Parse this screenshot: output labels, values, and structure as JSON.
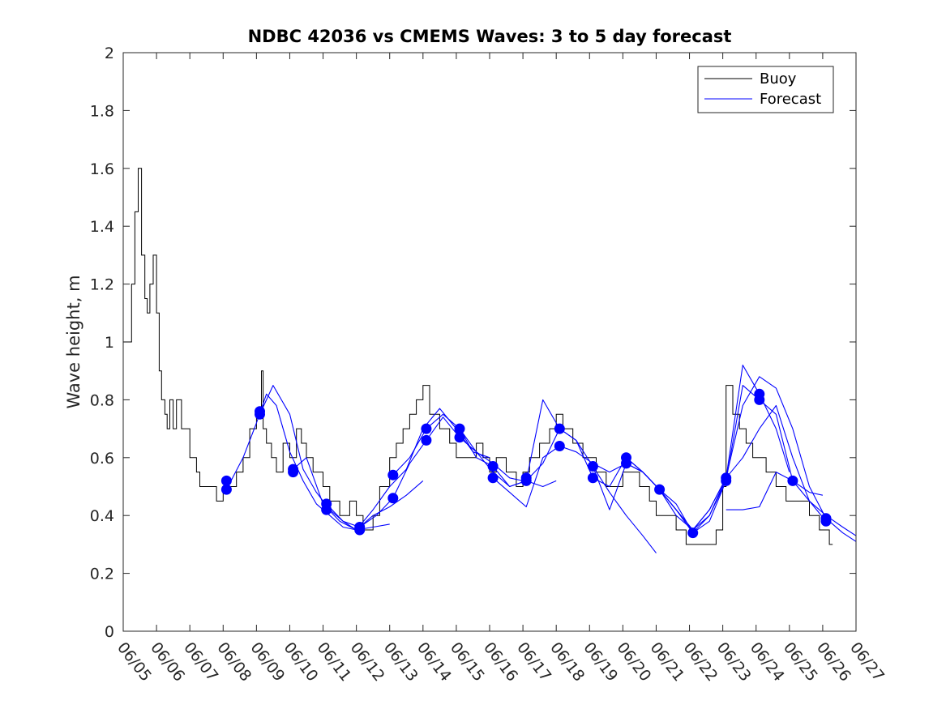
{
  "chart_data": {
    "type": "line",
    "title": "NDBC 42036 vs CMEMS Waves: 3 to 5 day forecast",
    "ylabel": "Wave height, m",
    "xlabel": "",
    "ylim": [
      0,
      2
    ],
    "yticks": [
      "0",
      "0.2",
      "0.4",
      "0.6",
      "0.8",
      "1",
      "1.2",
      "1.4",
      "1.6",
      "1.8",
      "2"
    ],
    "xlim_days": [
      5,
      27
    ],
    "xtick_labels": [
      "06/05",
      "06/06",
      "06/07",
      "06/08",
      "06/09",
      "06/10",
      "06/11",
      "06/12",
      "06/13",
      "06/14",
      "06/15",
      "06/16",
      "06/17",
      "06/18",
      "06/19",
      "06/20",
      "06/21",
      "06/22",
      "06/23",
      "06/24",
      "06/25",
      "06/26",
      "06/27"
    ],
    "grid": false,
    "legend": {
      "placement": "top-right",
      "entries": [
        {
          "label": "Buoy",
          "color": "#000000"
        },
        {
          "label": "Forecast",
          "color": "#0000ff"
        }
      ]
    },
    "colors": {
      "buoy": "#000000",
      "forecast": "#0000ff"
    },
    "buoy": {
      "x": [
        5.0,
        5.25,
        5.35,
        5.45,
        5.55,
        5.65,
        5.72,
        5.8,
        5.9,
        6.0,
        6.08,
        6.15,
        6.25,
        6.32,
        6.4,
        6.5,
        6.6,
        6.75,
        7.0,
        7.2,
        7.3,
        7.5,
        7.8,
        8.0,
        8.2,
        8.4,
        8.6,
        8.8,
        9.0,
        9.15,
        9.2,
        9.3,
        9.45,
        9.6,
        9.8,
        10.0,
        10.2,
        10.35,
        10.5,
        10.7,
        11.0,
        11.2,
        11.5,
        11.8,
        12.0,
        12.2,
        12.5,
        12.7,
        13.0,
        13.2,
        13.4,
        13.6,
        13.8,
        14.0,
        14.2,
        14.5,
        14.8,
        15.0,
        15.3,
        15.6,
        15.8,
        16.0,
        16.2,
        16.5,
        16.8,
        17.0,
        17.2,
        17.5,
        17.8,
        18.0,
        18.2,
        18.5,
        18.8,
        19.0,
        19.2,
        19.5,
        19.8,
        20.0,
        20.2,
        20.5,
        20.8,
        21.0,
        21.3,
        21.6,
        21.9,
        22.2,
        22.5,
        22.8,
        23.0,
        23.1,
        23.3,
        23.5,
        23.7,
        23.9,
        24.1,
        24.3,
        24.6,
        24.9,
        25.1,
        25.3,
        25.6,
        25.9,
        26.0,
        26.2,
        26.3
      ],
      "y": [
        1.0,
        1.2,
        1.45,
        1.6,
        1.3,
        1.15,
        1.1,
        1.2,
        1.3,
        1.1,
        0.9,
        0.8,
        0.75,
        0.7,
        0.8,
        0.7,
        0.8,
        0.7,
        0.6,
        0.55,
        0.5,
        0.5,
        0.45,
        0.5,
        0.5,
        0.55,
        0.6,
        0.7,
        0.75,
        0.9,
        0.7,
        0.65,
        0.6,
        0.55,
        0.65,
        0.6,
        0.7,
        0.65,
        0.6,
        0.55,
        0.5,
        0.45,
        0.4,
        0.45,
        0.4,
        0.35,
        0.4,
        0.5,
        0.6,
        0.65,
        0.7,
        0.75,
        0.8,
        0.85,
        0.75,
        0.7,
        0.65,
        0.6,
        0.6,
        0.65,
        0.6,
        0.55,
        0.6,
        0.55,
        0.5,
        0.55,
        0.6,
        0.65,
        0.7,
        0.75,
        0.7,
        0.65,
        0.6,
        0.6,
        0.55,
        0.5,
        0.5,
        0.55,
        0.55,
        0.5,
        0.45,
        0.4,
        0.4,
        0.35,
        0.3,
        0.3,
        0.3,
        0.35,
        0.5,
        0.85,
        0.75,
        0.7,
        0.65,
        0.6,
        0.6,
        0.55,
        0.5,
        0.45,
        0.45,
        0.45,
        0.4,
        0.35,
        0.35,
        0.3,
        0.3
      ]
    },
    "forecast_series": [
      {
        "x": [
          8.1,
          8.6,
          9.0,
          9.3,
          9.6,
          10.0,
          10.4,
          10.8,
          11.2,
          11.6,
          12.0,
          12.5,
          13.0
        ],
        "y": [
          0.49,
          0.6,
          0.72,
          0.82,
          0.78,
          0.62,
          0.52,
          0.44,
          0.4,
          0.36,
          0.35,
          0.36,
          0.37
        ]
      },
      {
        "x": [
          9.1,
          9.5,
          10.0,
          10.4,
          10.8,
          11.2,
          11.6,
          12.0,
          12.5,
          13.0,
          13.5,
          14.0
        ],
        "y": [
          0.75,
          0.85,
          0.75,
          0.56,
          0.48,
          0.42,
          0.38,
          0.35,
          0.4,
          0.43,
          0.47,
          0.52
        ]
      },
      {
        "x": [
          10.1,
          10.5,
          11.0,
          11.5,
          12.0,
          12.5,
          13.0,
          13.5,
          14.0,
          14.5,
          15.0,
          15.5,
          16.0
        ],
        "y": [
          0.56,
          0.6,
          0.44,
          0.38,
          0.35,
          0.42,
          0.5,
          0.56,
          0.7,
          0.77,
          0.7,
          0.62,
          0.6
        ]
      },
      {
        "x": [
          11.1,
          11.6,
          12.1,
          12.6,
          13.1,
          13.6,
          14.1,
          14.6,
          15.1,
          15.6,
          16.1,
          16.6,
          17.0
        ],
        "y": [
          0.44,
          0.38,
          0.36,
          0.4,
          0.46,
          0.58,
          0.66,
          0.74,
          0.67,
          0.62,
          0.58,
          0.53,
          0.52
        ]
      },
      {
        "x": [
          13.1,
          13.6,
          14.1,
          14.6,
          15.1,
          15.6,
          16.1,
          16.6,
          17.1,
          17.6,
          18.0
        ],
        "y": [
          0.54,
          0.6,
          0.7,
          0.75,
          0.7,
          0.62,
          0.55,
          0.5,
          0.52,
          0.5,
          0.52
        ]
      },
      {
        "x": [
          15.1,
          15.6,
          16.1,
          16.6,
          17.1,
          17.6,
          18.1,
          18.6,
          19.1,
          19.6,
          20.1,
          20.6,
          21.0
        ],
        "y": [
          0.7,
          0.6,
          0.57,
          0.5,
          0.52,
          0.58,
          0.7,
          0.66,
          0.57,
          0.48,
          0.4,
          0.33,
          0.27
        ]
      },
      {
        "x": [
          16.1,
          16.6,
          17.1,
          17.6,
          18.1,
          18.6,
          19.1,
          19.6,
          20.1,
          20.6,
          21.1,
          21.6,
          22.1
        ],
        "y": [
          0.53,
          0.48,
          0.43,
          0.6,
          0.64,
          0.62,
          0.58,
          0.55,
          0.58,
          0.55,
          0.49,
          0.42,
          0.35
        ]
      },
      {
        "x": [
          17.1,
          17.6,
          18.1,
          18.6,
          19.1,
          19.6,
          20.1,
          20.6,
          21.1,
          21.6,
          22.1,
          22.6,
          23.1
        ],
        "y": [
          0.52,
          0.8,
          0.7,
          0.66,
          0.53,
          0.5,
          0.6,
          0.55,
          0.49,
          0.44,
          0.34,
          0.38,
          0.52
        ]
      },
      {
        "x": [
          19.1,
          19.6,
          20.1,
          20.6,
          21.1,
          21.6,
          22.1,
          22.6,
          23.1,
          23.6,
          24.1,
          24.6,
          25.0
        ],
        "y": [
          0.57,
          0.42,
          0.58,
          0.55,
          0.49,
          0.4,
          0.35,
          0.42,
          0.53,
          0.92,
          0.82,
          0.7,
          0.55
        ]
      },
      {
        "x": [
          20.1,
          20.6,
          21.1,
          21.6,
          22.1,
          22.6,
          23.1,
          23.6,
          24.1,
          24.6,
          25.1,
          25.6,
          26.1
        ],
        "y": [
          0.6,
          0.55,
          0.49,
          0.42,
          0.34,
          0.4,
          0.52,
          0.85,
          0.8,
          0.75,
          0.52,
          0.45,
          0.38
        ]
      },
      {
        "x": [
          21.1,
          21.6,
          22.1,
          22.6,
          23.1,
          23.6,
          24.1,
          24.6,
          25.1,
          25.6,
          26.1,
          26.6,
          27.0
        ],
        "y": [
          0.49,
          0.42,
          0.35,
          0.42,
          0.53,
          0.78,
          0.88,
          0.84,
          0.7,
          0.5,
          0.39,
          0.34,
          0.31
        ]
      },
      {
        "x": [
          22.1,
          22.6,
          23.1,
          23.6,
          24.1,
          24.6,
          25.1,
          25.6,
          26.1,
          26.6,
          27.0
        ],
        "y": [
          0.35,
          0.4,
          0.53,
          0.6,
          0.7,
          0.78,
          0.6,
          0.45,
          0.4,
          0.36,
          0.33
        ]
      },
      {
        "x": [
          23.1,
          23.6,
          24.1,
          24.6,
          25.1,
          25.6,
          26.0
        ],
        "y": [
          0.42,
          0.42,
          0.43,
          0.55,
          0.52,
          0.48,
          0.47
        ]
      }
    ],
    "forecast_start_points": {
      "x": [
        8.1,
        8.1,
        9.1,
        9.1,
        10.1,
        10.1,
        11.1,
        11.1,
        12.1,
        12.1,
        13.1,
        13.1,
        14.1,
        14.1,
        15.1,
        15.1,
        16.1,
        16.1,
        17.1,
        17.1,
        18.1,
        18.1,
        19.1,
        19.1,
        20.1,
        20.1,
        21.1,
        22.1,
        23.1,
        23.1,
        24.1,
        24.1,
        25.1,
        26.1,
        26.1
      ],
      "y": [
        0.49,
        0.52,
        0.75,
        0.76,
        0.55,
        0.56,
        0.42,
        0.44,
        0.35,
        0.36,
        0.46,
        0.54,
        0.66,
        0.7,
        0.67,
        0.7,
        0.53,
        0.57,
        0.52,
        0.53,
        0.64,
        0.7,
        0.53,
        0.57,
        0.58,
        0.6,
        0.49,
        0.34,
        0.52,
        0.53,
        0.8,
        0.82,
        0.52,
        0.38,
        0.39
      ]
    }
  }
}
